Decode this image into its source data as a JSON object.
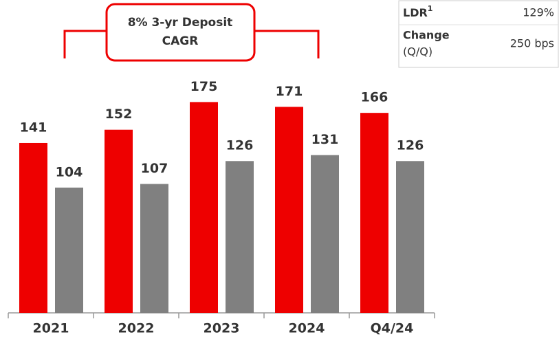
{
  "chart_data": {
    "type": "bar",
    "categories": [
      "2021",
      "2022",
      "2023",
      "2024",
      "Q4/24"
    ],
    "series": [
      {
        "color": "#ee0000",
        "values": [
          141,
          152,
          175,
          171,
          166
        ]
      },
      {
        "color": "#808080",
        "values": [
          104,
          107,
          126,
          131,
          126
        ]
      }
    ],
    "annotation": [
      "8% 3-yr Deposit",
      "CAGR"
    ]
  },
  "table": {
    "rows": [
      {
        "label": "LDR",
        "footnote": "1",
        "value": "129%"
      },
      {
        "label": "Change",
        "sublabel": "(Q/Q)",
        "value": "250 bps"
      }
    ]
  }
}
